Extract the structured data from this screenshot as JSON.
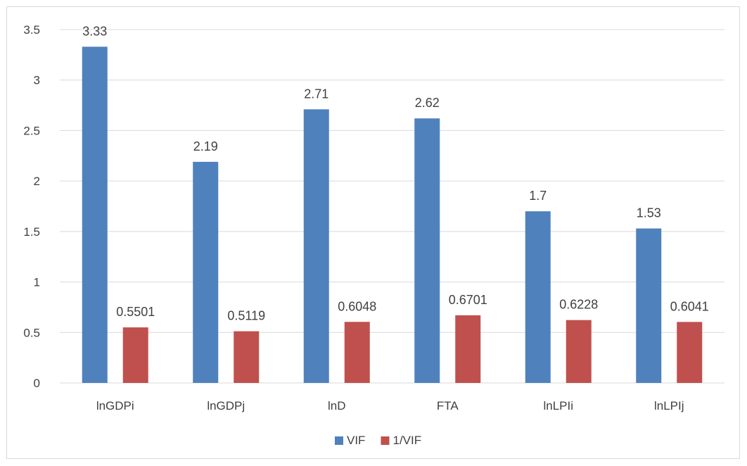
{
  "chart_data": {
    "type": "bar",
    "title": "",
    "xlabel": "",
    "ylabel": "",
    "categories": [
      "lnGDPi",
      "lnGDPj",
      "lnD",
      "FTA",
      "lnLPIi",
      "lnLPIj"
    ],
    "series": [
      {
        "name": "VIF",
        "color": "#4f81bd",
        "values": [
          3.33,
          2.19,
          2.71,
          2.62,
          1.7,
          1.53
        ]
      },
      {
        "name": "1/VIF",
        "color": "#c0504d",
        "values": [
          0.5501,
          0.5119,
          0.6048,
          0.6701,
          0.6228,
          0.6041
        ]
      }
    ],
    "data_labels": {
      "VIF": [
        "3.33",
        "2.19",
        "2.71",
        "2.62",
        "1.7",
        "1.53"
      ],
      "1/VIF": [
        "0.5501",
        "0.5119",
        "0.6048",
        "0.6701",
        "0.6228",
        "0.6041"
      ]
    },
    "y_ticks": [
      "0",
      "0.5",
      "1",
      "1.5",
      "2",
      "2.5",
      "3",
      "3.5"
    ],
    "ylim": [
      0,
      3.5
    ],
    "grid": true,
    "gridline_color": "#d9d9d9",
    "legend_position": "bottom"
  }
}
